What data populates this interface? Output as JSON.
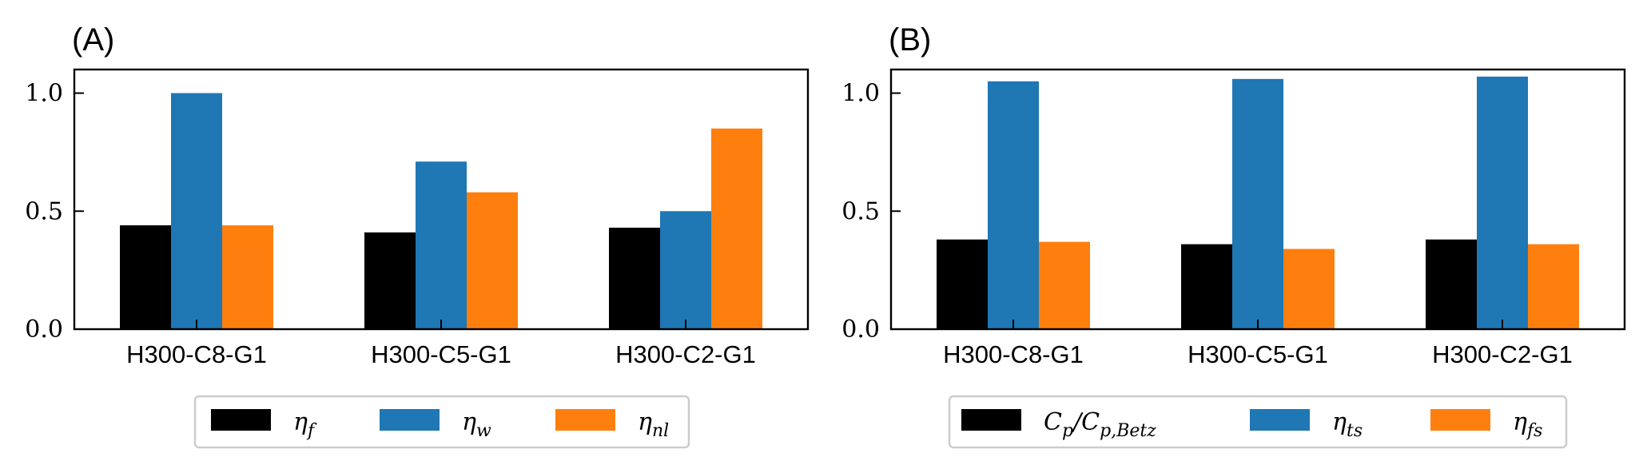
{
  "chart_data": [
    {
      "type": "bar",
      "panel_label": "(A)",
      "categories": [
        "H300-C8-G1",
        "H300-C5-G1",
        "H300-C2-G1"
      ],
      "series": [
        {
          "name": "ηf",
          "name_sub": "f",
          "color": "#000000",
          "values": [
            0.44,
            0.41,
            0.43
          ]
        },
        {
          "name": "ηw",
          "name_sub": "w",
          "color": "#1f77b4",
          "values": [
            1.0,
            0.71,
            0.5
          ]
        },
        {
          "name": "ηnl",
          "name_sub": "nl",
          "color": "#ff7f0e",
          "values": [
            0.44,
            0.58,
            0.85
          ]
        }
      ],
      "ylim": [
        0,
        1.1
      ],
      "yticks": [
        "0.0",
        "0.5",
        "1.0"
      ],
      "ytick_values": [
        0,
        0.5,
        1.0
      ],
      "legend": "bottom"
    },
    {
      "type": "bar",
      "panel_label": "(B)",
      "categories": [
        "H300-C8-G1",
        "H300-C5-G1",
        "H300-C2-G1"
      ],
      "series": [
        {
          "name": "Cp/Cp,Betz",
          "color": "#000000",
          "values": [
            0.38,
            0.36,
            0.38
          ]
        },
        {
          "name": "ηts",
          "name_sub": "ts",
          "color": "#1f77b4",
          "values": [
            1.05,
            1.06,
            1.07
          ]
        },
        {
          "name": "ηfs",
          "name_sub": "fs",
          "color": "#ff7f0e",
          "values": [
            0.37,
            0.34,
            0.36
          ]
        }
      ],
      "ylim": [
        0,
        1.1
      ],
      "yticks": [
        "0.0",
        "0.5",
        "1.0"
      ],
      "ytick_values": [
        0,
        0.5,
        1.0
      ],
      "legend": "bottom"
    }
  ]
}
